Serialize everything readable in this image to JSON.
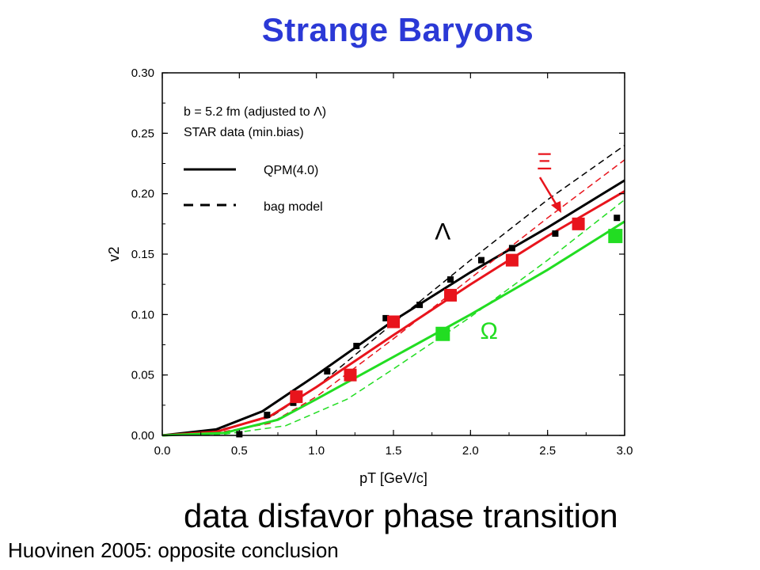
{
  "slide": {
    "title": "Strange Baryons",
    "subtitle": "data disfavor phase transition",
    "footnote": "Huovinen 2005: opposite conclusion"
  },
  "chart_data": {
    "type": "line",
    "xlabel": "pT [GeV/c]",
    "ylabel": "v2",
    "xlim": [
      0.0,
      3.0
    ],
    "ylim": [
      0.0,
      0.3
    ],
    "xticks": [
      "0.0",
      "0.5",
      "1.0",
      "1.5",
      "2.0",
      "2.5",
      "3.0"
    ],
    "yticks": [
      "0.00",
      "0.05",
      "0.10",
      "0.15",
      "0.20",
      "0.25",
      "0.30"
    ],
    "grid": false,
    "legend": {
      "position": "top-left",
      "lines": [
        "b = 5.2 fm (adjusted to Λ)",
        "STAR data (min.bias)"
      ],
      "entries": [
        {
          "label": "QPM(4.0)",
          "style": "solid"
        },
        {
          "label": "bag model",
          "style": "dashed"
        }
      ]
    },
    "annotations": [
      {
        "text": "Λ",
        "x": 1.82,
        "y": 0.162,
        "color": "#000000"
      },
      {
        "text": "Ξ",
        "x": 2.48,
        "y": 0.22,
        "color": "#e8141c"
      },
      {
        "text": "Ω",
        "x": 2.12,
        "y": 0.08,
        "color": "#22dd22"
      }
    ],
    "series": [
      {
        "color": "#000000",
        "style": "solid",
        "width": 3,
        "x": [
          0.0,
          0.35,
          0.65,
          1.0,
          1.5,
          2.0,
          2.5,
          3.0
        ],
        "y": [
          0.0,
          0.005,
          0.02,
          0.05,
          0.095,
          0.135,
          0.172,
          0.211
        ]
      },
      {
        "color": "#000000",
        "style": "dashed",
        "width": 1.5,
        "x": [
          0.0,
          0.35,
          0.7,
          1.0,
          1.5,
          2.0,
          2.5,
          3.0
        ],
        "y": [
          0.0,
          0.004,
          0.015,
          0.04,
          0.093,
          0.145,
          0.195,
          0.24
        ]
      },
      {
        "color": "#e8141c",
        "style": "solid",
        "width": 3,
        "x": [
          0.0,
          0.35,
          0.7,
          1.0,
          1.5,
          2.0,
          2.5,
          3.0
        ],
        "y": [
          0.0,
          0.003,
          0.016,
          0.04,
          0.083,
          0.125,
          0.165,
          0.202
        ]
      },
      {
        "color": "#e8141c",
        "style": "dashed",
        "width": 1.5,
        "x": [
          0.0,
          0.35,
          0.7,
          1.0,
          1.5,
          2.0,
          2.5,
          3.0
        ],
        "y": [
          0.0,
          0.002,
          0.01,
          0.032,
          0.08,
          0.13,
          0.18,
          0.228
        ]
      },
      {
        "color": "#22dd22",
        "style": "solid",
        "width": 3,
        "x": [
          0.0,
          0.4,
          0.75,
          1.0,
          1.5,
          2.0,
          2.5,
          3.0
        ],
        "y": [
          0.0,
          0.002,
          0.013,
          0.03,
          0.065,
          0.1,
          0.137,
          0.177
        ]
      },
      {
        "color": "#22dd22",
        "style": "dashed",
        "width": 1.5,
        "x": [
          0.0,
          0.4,
          0.8,
          1.2,
          1.5,
          2.0,
          2.5,
          3.0
        ],
        "y": [
          0.0,
          0.001,
          0.008,
          0.03,
          0.055,
          0.098,
          0.145,
          0.195
        ]
      }
    ],
    "markers": [
      {
        "color": "#000000",
        "size": 8,
        "x": [
          0.5,
          0.68,
          0.85,
          1.07,
          1.26,
          1.45,
          1.67,
          1.87,
          2.07,
          2.27,
          2.55,
          2.95
        ],
        "y": [
          0.001,
          0.017,
          0.027,
          0.053,
          0.074,
          0.097,
          0.108,
          0.129,
          0.145,
          0.155,
          0.167,
          0.18
        ]
      },
      {
        "color": "#e8141c",
        "size": 16,
        "x": [
          0.87,
          1.22,
          1.5,
          1.87,
          2.27,
          2.7
        ],
        "y": [
          0.032,
          0.05,
          0.094,
          0.116,
          0.145,
          0.175
        ]
      },
      {
        "color": "#22dd22",
        "size": 18,
        "x": [
          1.82,
          2.94
        ],
        "y": [
          0.084,
          0.165
        ]
      }
    ]
  }
}
